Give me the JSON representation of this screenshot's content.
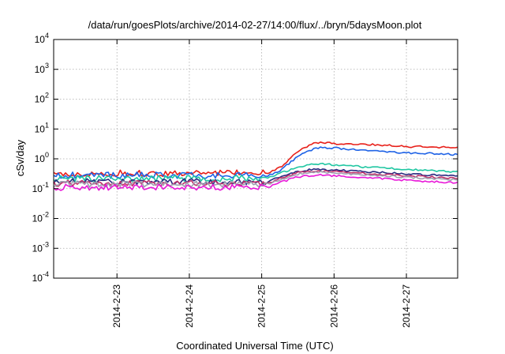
{
  "chart_data": {
    "type": "line",
    "title": "/data/run/goesPlots/archive/2014-02-27/14:00/flux/../bryn/5daysMoon.plot",
    "xlabel": "Coordinated Universal Time (UTC)",
    "ylabel": "cSv/day",
    "y_scale": "log",
    "ylim": [
      0.0001,
      10000
    ],
    "xlim": [
      "2014-02-22 03:00",
      "2014-02-27 17:00"
    ],
    "x_ticks": [
      "2014-2-23",
      "2014-2-24",
      "2014-2-25",
      "2014-2-26",
      "2014-2-27"
    ],
    "y_ticks": [
      {
        "base": "10",
        "exp": "-4",
        "value": 0.0001
      },
      {
        "base": "10",
        "exp": "-3",
        "value": 0.001
      },
      {
        "base": "10",
        "exp": "-2",
        "value": 0.01
      },
      {
        "base": "10",
        "exp": "-1",
        "value": 0.1
      },
      {
        "base": "10",
        "exp": "0",
        "value": 1
      },
      {
        "base": "10",
        "exp": "1",
        "value": 10
      },
      {
        "base": "10",
        "exp": "2",
        "value": 100
      },
      {
        "base": "10",
        "exp": "3",
        "value": 1000
      },
      {
        "base": "10",
        "exp": "4",
        "value": 10000
      }
    ],
    "grid": true,
    "series": [
      {
        "color": "#e8201a",
        "x": [
          "2014-02-22 03:00",
          "2014-02-25 02:00",
          "2014-02-25 06:00",
          "2014-02-25 12:00",
          "2014-02-25 18:00",
          "2014-02-26 00:00",
          "2014-02-26 12:00",
          "2014-02-27 00:00",
          "2014-02-27 17:00"
        ],
        "y": [
          0.33,
          0.33,
          0.5,
          1.8,
          3.5,
          3.3,
          3.0,
          2.6,
          2.4
        ]
      },
      {
        "color": "#1e62e6",
        "x": [
          "2014-02-22 03:00",
          "2014-02-25 02:00",
          "2014-02-25 06:00",
          "2014-02-25 12:00",
          "2014-02-25 18:00",
          "2014-02-26 00:00",
          "2014-02-26 12:00",
          "2014-02-27 00:00",
          "2014-02-27 17:00"
        ],
        "y": [
          0.28,
          0.28,
          0.4,
          1.2,
          2.4,
          2.3,
          1.9,
          1.6,
          1.4
        ]
      },
      {
        "color": "#20c7a2",
        "x": [
          "2014-02-22 03:00",
          "2014-02-25 02:00",
          "2014-02-25 06:00",
          "2014-02-25 12:00",
          "2014-02-25 18:00",
          "2014-02-26 00:00",
          "2014-02-26 12:00",
          "2014-02-27 00:00",
          "2014-02-27 17:00"
        ],
        "y": [
          0.22,
          0.22,
          0.32,
          0.55,
          0.7,
          0.62,
          0.52,
          0.44,
          0.36
        ]
      },
      {
        "color": "#2a2a80",
        "x": [
          "2014-02-22 03:00",
          "2014-02-25 02:00",
          "2014-02-25 06:00",
          "2014-02-25 12:00",
          "2014-02-25 18:00",
          "2014-02-26 00:00",
          "2014-02-26 12:00",
          "2014-02-27 00:00",
          "2014-02-27 17:00"
        ],
        "y": [
          0.17,
          0.17,
          0.25,
          0.38,
          0.45,
          0.42,
          0.37,
          0.31,
          0.26
        ]
      },
      {
        "color": "#c0306a",
        "x": [
          "2014-02-22 03:00",
          "2014-02-25 02:00",
          "2014-02-25 06:00",
          "2014-02-25 12:00",
          "2014-02-25 18:00",
          "2014-02-26 00:00",
          "2014-02-26 12:00",
          "2014-02-27 00:00",
          "2014-02-27 17:00"
        ],
        "y": [
          0.15,
          0.15,
          0.22,
          0.34,
          0.4,
          0.37,
          0.32,
          0.27,
          0.22
        ]
      },
      {
        "color": "#a0a0b0",
        "x": [
          "2014-02-22 03:00",
          "2014-02-25 02:00",
          "2014-02-25 06:00",
          "2014-02-25 12:00",
          "2014-02-25 18:00",
          "2014-02-26 00:00",
          "2014-02-26 12:00",
          "2014-02-27 00:00",
          "2014-02-27 17:00"
        ],
        "y": [
          0.14,
          0.14,
          0.2,
          0.31,
          0.36,
          0.33,
          0.29,
          0.24,
          0.2
        ]
      },
      {
        "color": "#e818d8",
        "x": [
          "2014-02-22 03:00",
          "2014-02-25 02:00",
          "2014-02-25 06:00",
          "2014-02-25 12:00",
          "2014-02-25 18:00",
          "2014-02-26 00:00",
          "2014-02-26 12:00",
          "2014-02-27 00:00",
          "2014-02-27 17:00"
        ],
        "y": [
          0.11,
          0.11,
          0.16,
          0.25,
          0.29,
          0.27,
          0.23,
          0.19,
          0.16
        ]
      }
    ]
  }
}
